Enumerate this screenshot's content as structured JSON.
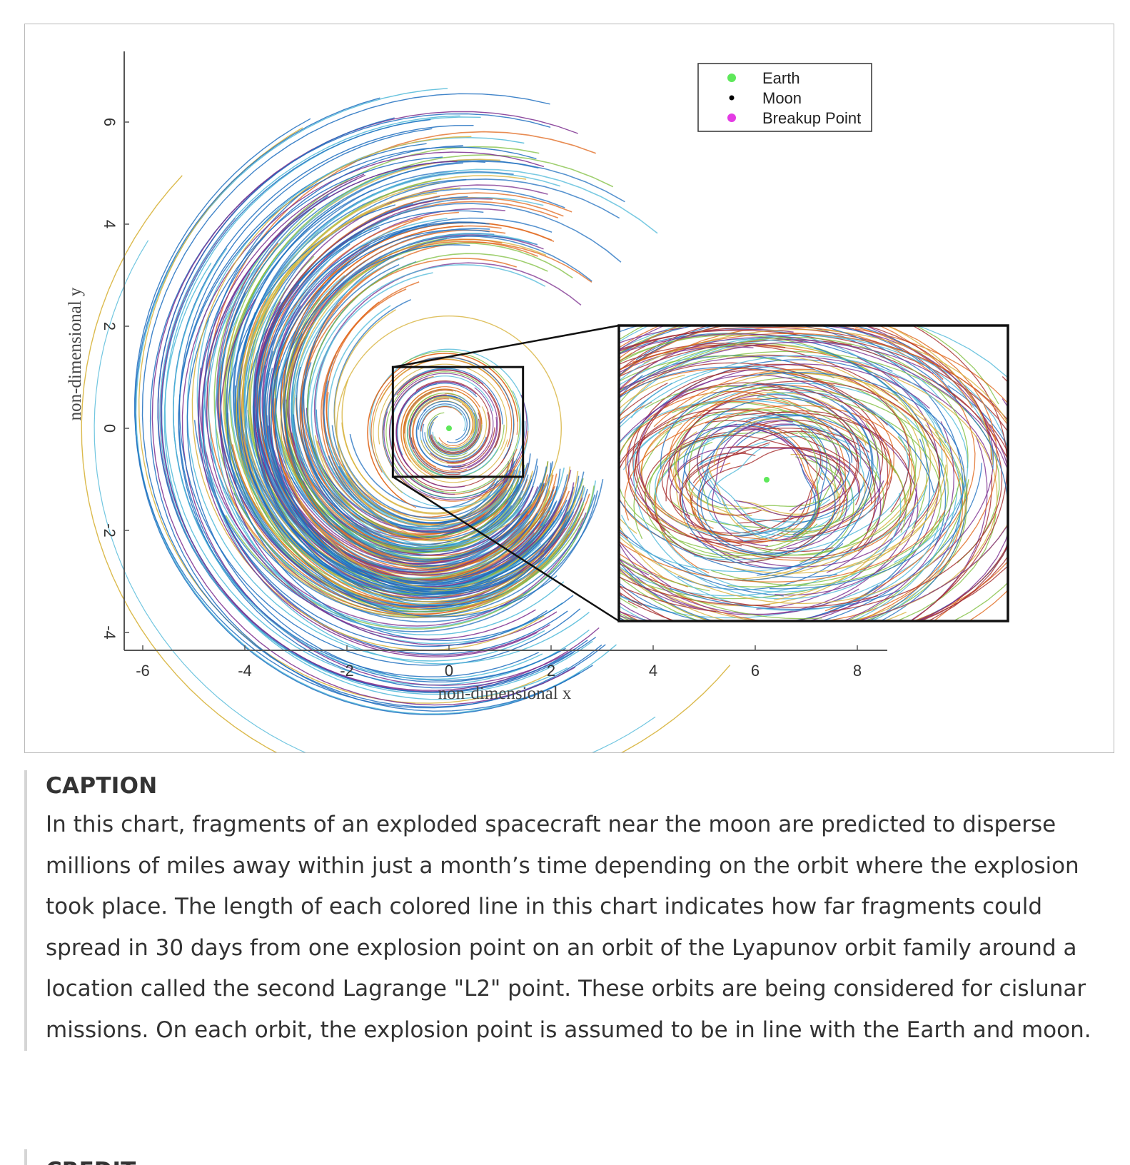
{
  "figure": {
    "chart_data": {
      "type": "line",
      "title": "",
      "xlabel": "non-dimensional x",
      "ylabel": "non-dimensional y",
      "xlim": [
        -6.4,
        8.5
      ],
      "ylim": [
        -4.35,
        7.3
      ],
      "x_ticks": [
        -6,
        -4,
        -2,
        0,
        2,
        4,
        6,
        8
      ],
      "x_tick_labels": [
        "-6",
        "-4",
        "-2",
        "0",
        "2",
        "4",
        "6",
        "8"
      ],
      "y_ticks": [
        -4,
        -2,
        0,
        2,
        4,
        6
      ],
      "y_tick_labels": [
        "-4",
        "-2",
        "0",
        "2",
        "4",
        "6"
      ],
      "grid": false,
      "legend_position": "top-right",
      "legend": [
        {
          "label": "Earth",
          "color": "#5ee85a"
        },
        {
          "label": "Moon",
          "color": "#000000"
        },
        {
          "label": "Breakup Point",
          "color": "#e43be4"
        }
      ],
      "points": [
        {
          "name": "Earth",
          "x": 0,
          "y": 0
        },
        {
          "name": "Moon",
          "x": 0.0,
          "y": 0.0
        }
      ],
      "zoom_box": {
        "x_range": [
          -1.1,
          1.45
        ],
        "y_range": [
          -0.95,
          1.2
        ]
      },
      "series_colors": [
        "#1f6fbf",
        "#e0661a",
        "#d7b23a",
        "#7b2d8e",
        "#7fbf3f",
        "#4db8d8",
        "#a52a2a"
      ],
      "fragment_count_shown": "many"
    }
  },
  "caption": {
    "heading": "CAPTION",
    "text": "In this chart, fragments of an exploded spacecraft near the moon are predicted to disperse millions of miles away within just a month’s time depending on the orbit where the explosion took place. The length of each colored line in this chart indicates how far fragments could spread in 30 days from one explosion point on an orbit of the Lyapunov orbit family around a location called the second Lagrange \"L2\" point. These orbits are being considered for cislunar missions. On each orbit, the explosion point is assumed to be in line with the Earth and moon."
  },
  "credit": {
    "heading": "CREDIT"
  }
}
